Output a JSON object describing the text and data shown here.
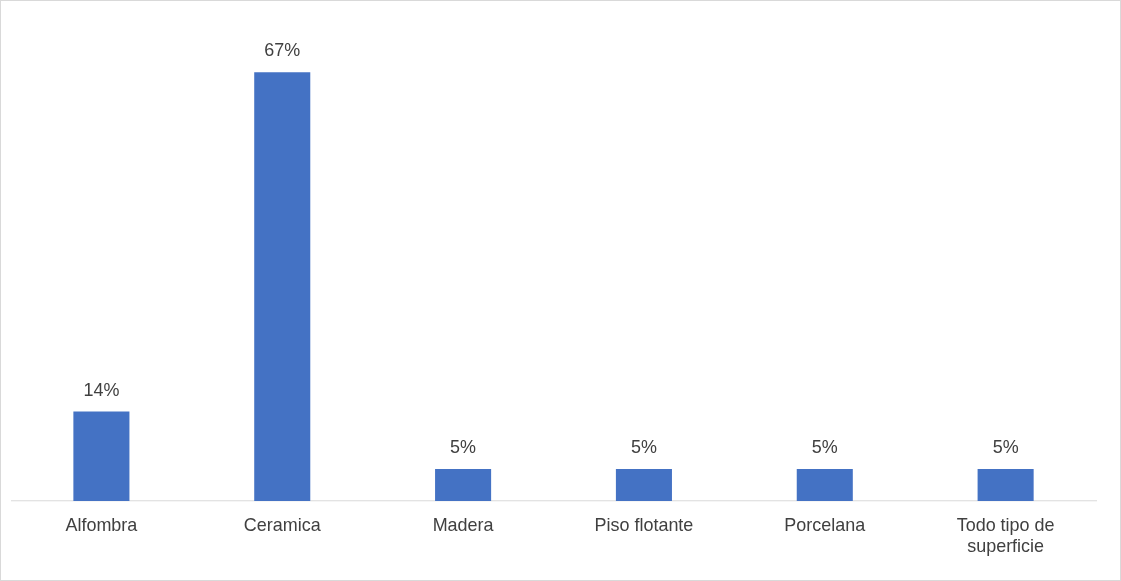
{
  "chart_data": {
    "type": "bar",
    "categories": [
      "Alfombra",
      "Ceramica",
      "Madera",
      "Piso flotante",
      "Porcelana",
      "Todo tipo de superficie"
    ],
    "values": [
      14,
      67,
      5,
      5,
      5,
      5
    ],
    "value_labels": [
      "14%",
      "67%",
      "5%",
      "5%",
      "5%",
      "5%"
    ],
    "color": "#4472c4",
    "grid": false,
    "legend": false
  }
}
